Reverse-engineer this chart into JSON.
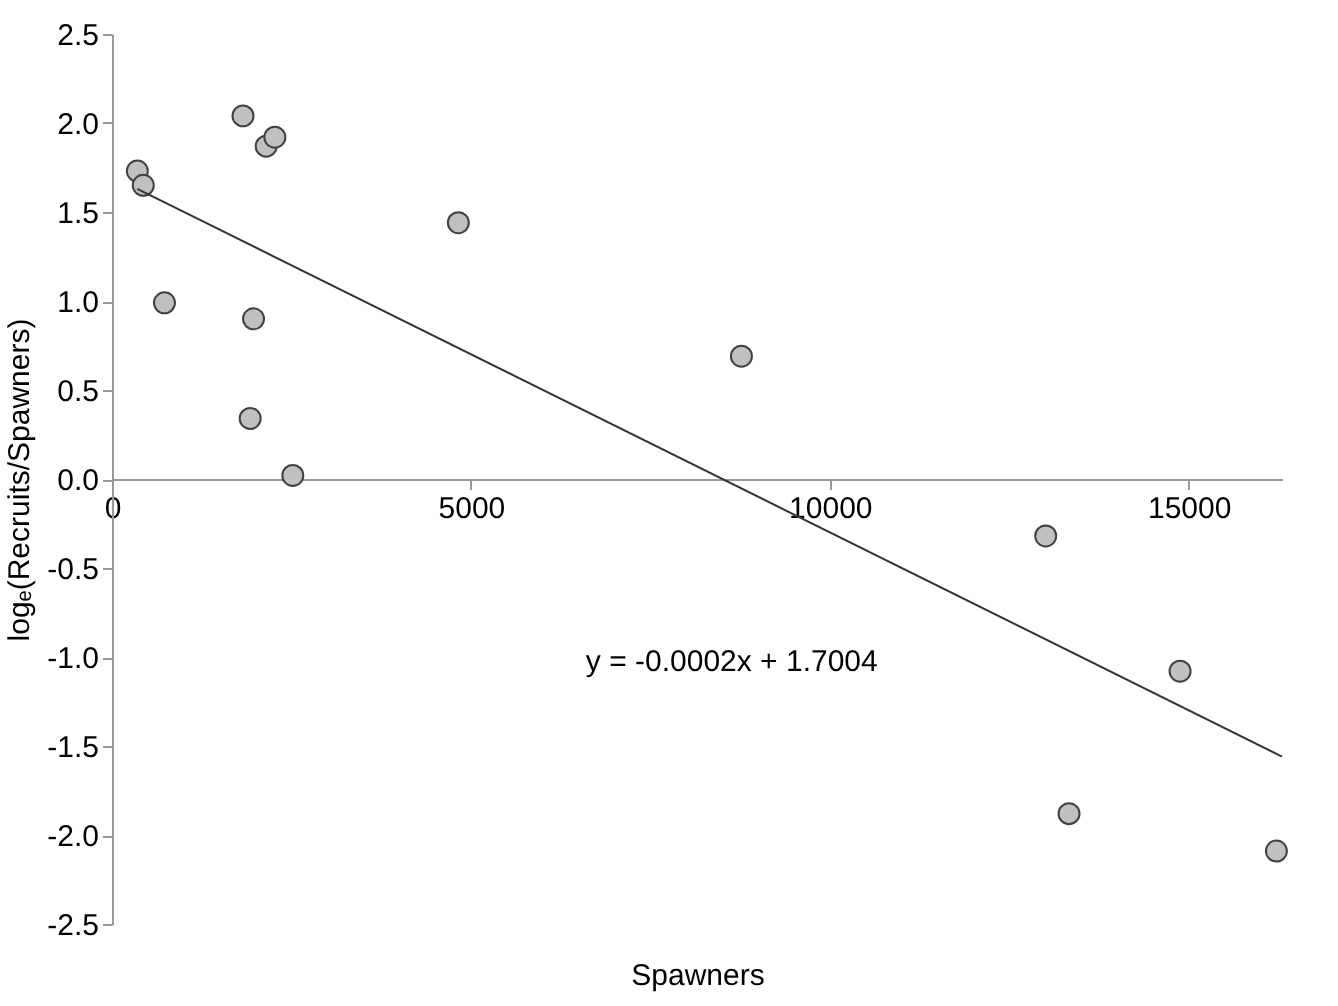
{
  "chart_data": {
    "type": "scatter",
    "xlabel": "Spawners",
    "ylabel": "logₑ(Recruits/Spawners)",
    "xlim": [
      0,
      16300
    ],
    "xticks": [
      0,
      5000,
      10000,
      15000
    ],
    "ylim": [
      -2.5,
      2.5
    ],
    "yticks": [
      {
        "value": -2.5,
        "label": "-2.5"
      },
      {
        "value": -2,
        "label": "-2.0"
      },
      {
        "value": -1.5,
        "label": "-1.5"
      },
      {
        "value": -1,
        "label": "-1.0"
      },
      {
        "value": -0.5,
        "label": "-0.5"
      },
      {
        "value": 0,
        "label": "0.0"
      },
      {
        "value": 0.5,
        "label": "0.5"
      },
      {
        "value": 1,
        "label": "1.0"
      },
      {
        "value": 1.5,
        "label": "1.5"
      },
      {
        "value": 2,
        "label": "2.0"
      },
      {
        "value": 2.5,
        "label": "2.5"
      }
    ],
    "grid": false,
    "marker": "circle",
    "annotations": [
      "y = -0.0002x + 1.7004"
    ],
    "series": [
      {
        "color": "#c0c0c0",
        "x": [
          353,
          436,
          731,
          1825,
          2148,
          2269,
          1972,
          1925,
          2519,
          4825,
          8769,
          13008,
          14880,
          13333,
          16222
        ],
        "values": [
          1.73,
          1.65,
          0.99,
          2.04,
          1.87,
          1.92,
          0.9,
          0.34,
          0.02,
          1.44,
          0.69,
          -0.32,
          -1.08,
          -1.88,
          -2.09
        ]
      },
      {
        "type": "line",
        "color": "#333333",
        "line_style": "solid",
        "marker": "none",
        "x": [
          353,
          16300
        ],
        "values": [
          1.63,
          -1.56
        ]
      }
    ]
  }
}
